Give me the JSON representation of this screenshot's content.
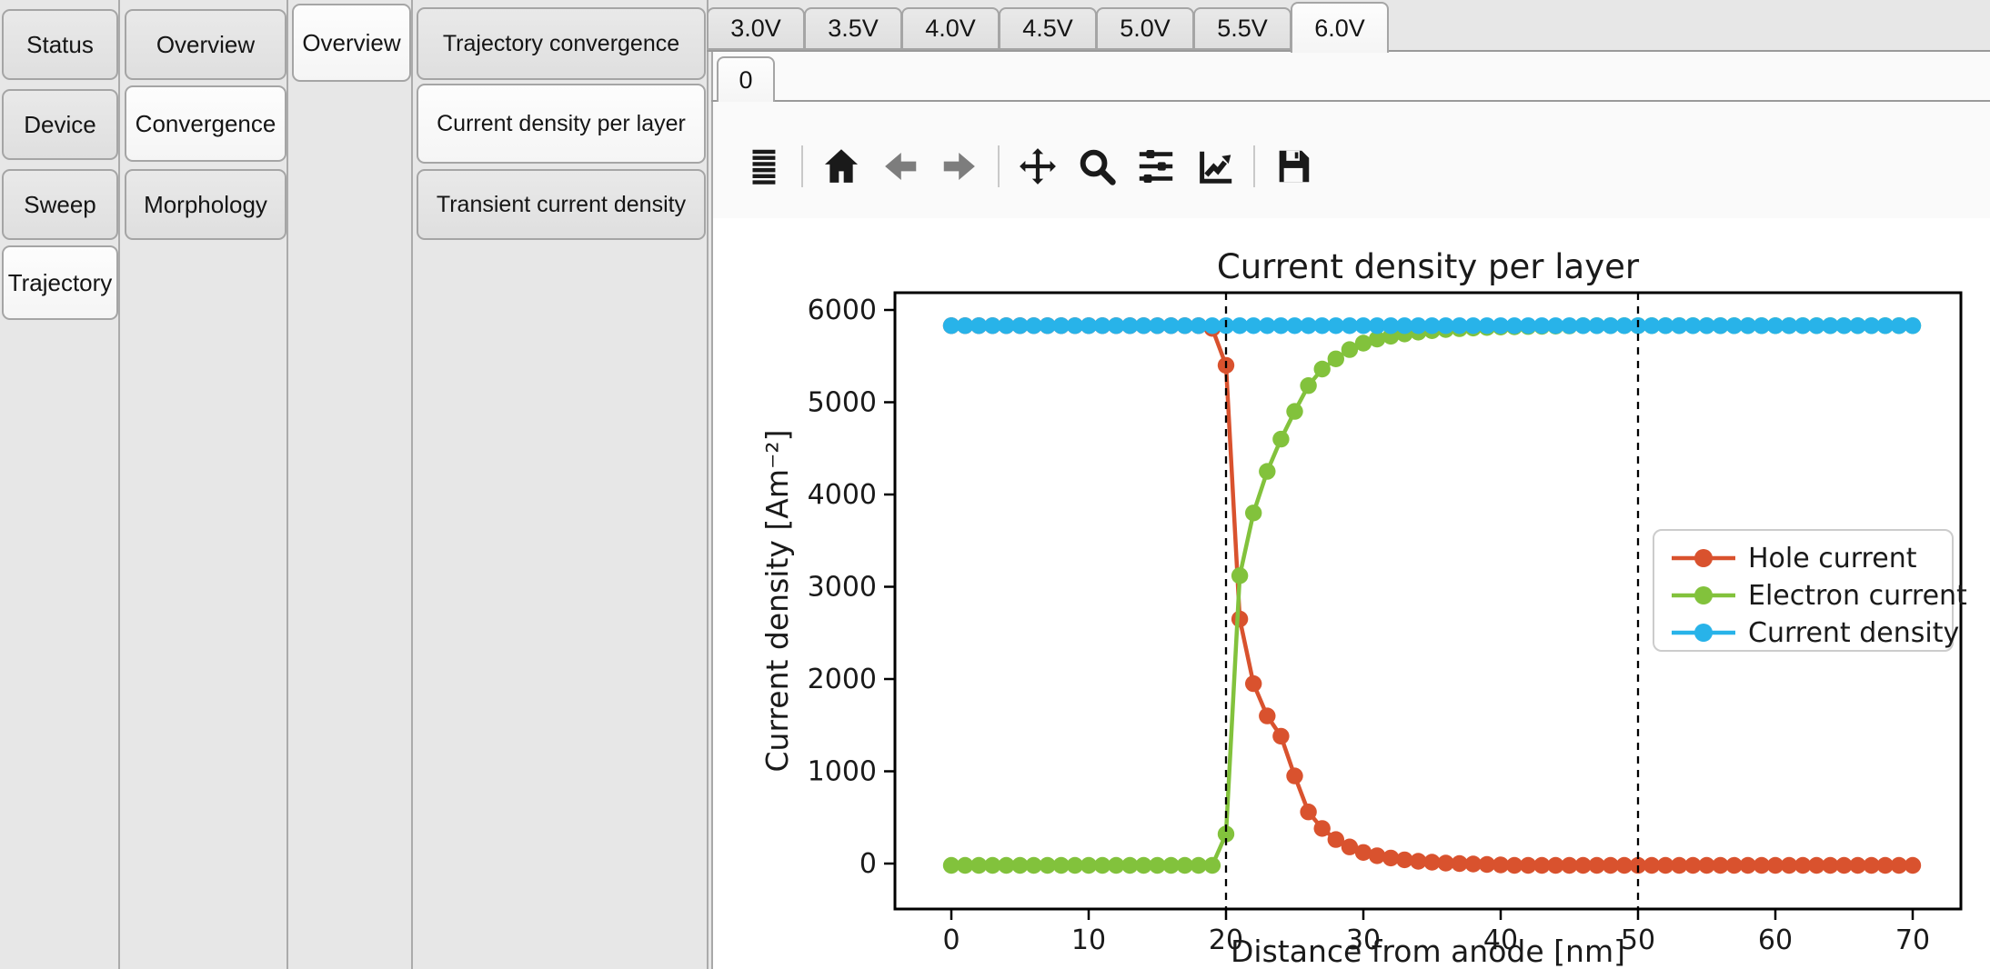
{
  "nav": {
    "level1": {
      "items": [
        "Status",
        "Device",
        "Sweep",
        "Trajectory"
      ],
      "selected": "Trajectory"
    },
    "level2": {
      "items": [
        "Overview",
        "Convergence",
        "Morphology"
      ],
      "selected": "Convergence"
    },
    "level3": {
      "items": [
        "Overview"
      ],
      "selected": "Overview"
    },
    "level4": {
      "items": [
        "Trajectory convergence",
        "Current density per layer",
        "Transient current density"
      ],
      "selected": "Current density per layer"
    },
    "voltage_tabs": {
      "items": [
        "3.0V",
        "3.5V",
        "4.0V",
        "4.5V",
        "5.0V",
        "5.5V",
        "6.0V"
      ],
      "selected": "6.0V"
    },
    "trajectory_index_tabs": {
      "items": [
        "0"
      ],
      "selected": "0"
    }
  },
  "toolbar": {
    "buttons": [
      "menu",
      "home",
      "back",
      "forward",
      "pan",
      "zoom",
      "subplots",
      "customize",
      "save"
    ],
    "separators_after": [
      "menu",
      "forward",
      "customize"
    ],
    "disabled": [
      "back",
      "forward"
    ],
    "icon_color": "#1a1a1a",
    "disabled_color": "#7d7d7d"
  },
  "chart_data": {
    "type": "line",
    "title": "Current density per layer",
    "xlabel": "Distance from anode [nm]",
    "ylabel": "Current density [Am⁻²]",
    "xticks": [
      0,
      10,
      20,
      30,
      40,
      50,
      60,
      70
    ],
    "yticks": [
      0,
      1000,
      2000,
      3000,
      4000,
      5000,
      6000
    ],
    "xlim": [
      -4.1,
      73.5
    ],
    "ylim": [
      -540,
      6190
    ],
    "grid": false,
    "vlines": [
      20,
      50
    ],
    "vline_style": {
      "color": "#000000",
      "dash": true
    },
    "legend": {
      "position": "center right",
      "entries": [
        "Hole current",
        "Electron current",
        "Current density"
      ]
    },
    "x": [
      0,
      1,
      2,
      3,
      4,
      5,
      6,
      7,
      8,
      9,
      10,
      11,
      12,
      13,
      14,
      15,
      16,
      17,
      18,
      19,
      20,
      21,
      22,
      23,
      24,
      25,
      26,
      27,
      28,
      29,
      30,
      31,
      32,
      33,
      34,
      35,
      36,
      37,
      38,
      39,
      40,
      41,
      42,
      43,
      44,
      45,
      46,
      47,
      48,
      49,
      50,
      51,
      52,
      53,
      54,
      55,
      56,
      57,
      58,
      59,
      60,
      61,
      62,
      63,
      64,
      65,
      66,
      67,
      68,
      69,
      70
    ],
    "series": [
      {
        "name": "Hole current",
        "color": "#d9522e",
        "values": [
          5830,
          5830,
          5830,
          5830,
          5830,
          5830,
          5830,
          5830,
          5830,
          5830,
          5830,
          5830,
          5830,
          5830,
          5830,
          5830,
          5830,
          5830,
          5830,
          5800,
          5400,
          2650,
          1950,
          1600,
          1380,
          950,
          560,
          380,
          260,
          180,
          120,
          85,
          60,
          40,
          25,
          15,
          5,
          0,
          -5,
          -10,
          -15,
          -20,
          -20,
          -20,
          -20,
          -20,
          -20,
          -20,
          -20,
          -20,
          -20,
          -20,
          -20,
          -20,
          -20,
          -20,
          -20,
          -20,
          -20,
          -20,
          -20,
          -20,
          -20,
          -20,
          -20,
          -20,
          -20,
          -20,
          -20,
          -20,
          -20
        ]
      },
      {
        "name": "Electron current",
        "color": "#82c23c",
        "values": [
          -20,
          -20,
          -20,
          -20,
          -20,
          -20,
          -20,
          -20,
          -20,
          -20,
          -20,
          -20,
          -20,
          -20,
          -20,
          -20,
          -20,
          -20,
          -20,
          -20,
          320,
          3120,
          3800,
          4250,
          4600,
          4900,
          5180,
          5360,
          5470,
          5570,
          5640,
          5685,
          5715,
          5740,
          5760,
          5775,
          5788,
          5797,
          5804,
          5810,
          5815,
          5818,
          5821,
          5823,
          5825,
          5827,
          5830,
          5830,
          5830,
          5830,
          5830,
          5830,
          5830,
          5830,
          5830,
          5830,
          5830,
          5830,
          5830,
          5830,
          5830,
          5830,
          5830,
          5830,
          5830,
          5830,
          5830,
          5830,
          5830,
          5830,
          5830
        ]
      },
      {
        "name": "Current density",
        "color": "#28b3e9",
        "values": [
          5830,
          5830,
          5830,
          5830,
          5830,
          5830,
          5830,
          5830,
          5830,
          5830,
          5830,
          5830,
          5830,
          5830,
          5830,
          5830,
          5830,
          5830,
          5830,
          5830,
          5830,
          5830,
          5830,
          5830,
          5830,
          5830,
          5830,
          5830,
          5830,
          5830,
          5830,
          5830,
          5830,
          5830,
          5830,
          5830,
          5830,
          5830,
          5830,
          5830,
          5830,
          5830,
          5830,
          5830,
          5830,
          5830,
          5830,
          5830,
          5830,
          5830,
          5830,
          5830,
          5830,
          5830,
          5830,
          5830,
          5830,
          5830,
          5830,
          5830,
          5830,
          5830,
          5830,
          5830,
          5830,
          5830,
          5830,
          5830,
          5830,
          5830,
          5830
        ]
      }
    ]
  }
}
